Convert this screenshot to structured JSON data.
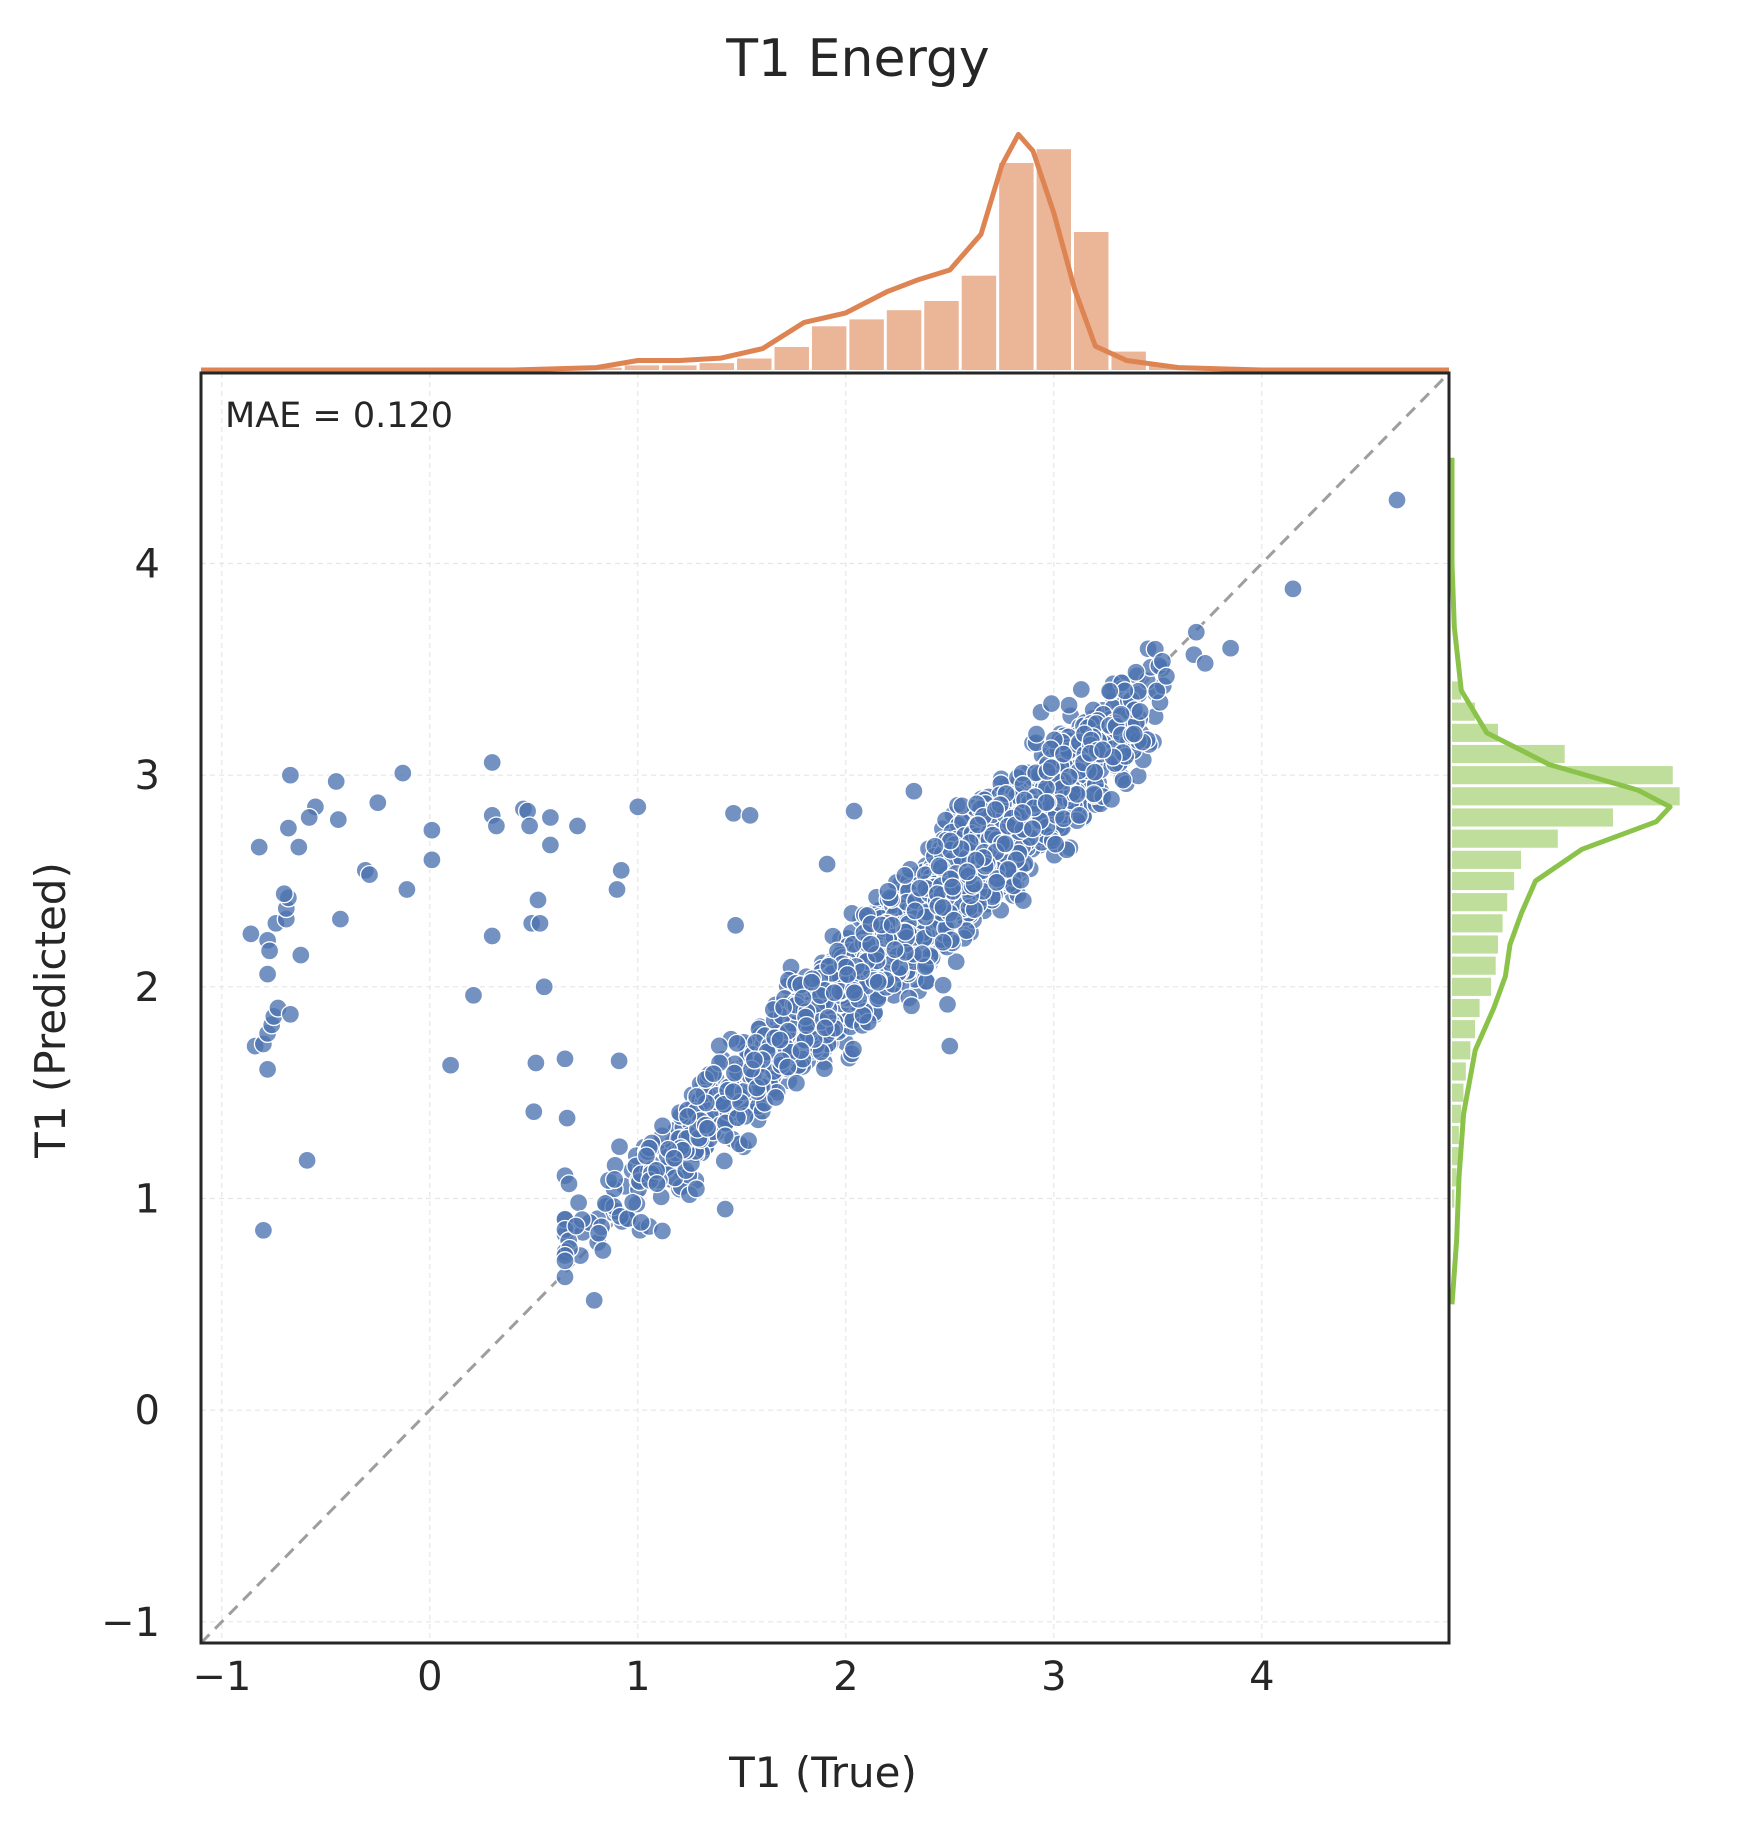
{
  "chart_data": {
    "type": "scatter",
    "title": "T1 Energy",
    "xlabel": "T1 (True)",
    "ylabel": "T1 (Predicted)",
    "xlim": [
      -1.1,
      4.9
    ],
    "ylim": [
      -1.1,
      4.9
    ],
    "xticks": [
      "−1",
      "0",
      "1",
      "2",
      "3",
      "4"
    ],
    "yticks": [
      "−1",
      "0",
      "1",
      "2",
      "3",
      "4"
    ],
    "grid": true,
    "annotation": "MAE = 0.120",
    "reference_line": "y = x",
    "colors": {
      "points": "#4c72b0",
      "top_hist": "#dd8452",
      "right_hist": "#8bc34a",
      "diagonal": "#9e9e9e"
    },
    "outliers": [
      [
        -0.82,
        2.66
      ],
      [
        -0.67,
        3.0
      ],
      [
        -0.45,
        2.97
      ],
      [
        -0.13,
        3.01
      ],
      [
        0.3,
        3.06
      ],
      [
        -0.25,
        2.87
      ],
      [
        -0.55,
        2.85
      ],
      [
        -0.58,
        2.8
      ],
      [
        -0.44,
        2.79
      ],
      [
        -0.68,
        2.75
      ],
      [
        -0.63,
        2.66
      ],
      [
        0.01,
        2.74
      ],
      [
        -0.86,
        2.25
      ],
      [
        -0.78,
        2.22
      ],
      [
        -0.77,
        2.17
      ],
      [
        -0.62,
        2.15
      ],
      [
        -0.78,
        2.06
      ],
      [
        -0.74,
        2.3
      ],
      [
        -0.69,
        2.32
      ],
      [
        -0.69,
        2.37
      ],
      [
        -0.68,
        2.42
      ],
      [
        -0.7,
        2.44
      ],
      [
        -0.43,
        2.32
      ],
      [
        -0.31,
        2.55
      ],
      [
        -0.29,
        2.53
      ],
      [
        -0.11,
        2.46
      ],
      [
        0.01,
        2.6
      ],
      [
        0.3,
        2.81
      ],
      [
        0.32,
        2.76
      ],
      [
        0.45,
        2.84
      ],
      [
        0.47,
        2.83
      ],
      [
        0.48,
        2.76
      ],
      [
        0.58,
        2.8
      ],
      [
        0.71,
        2.76
      ],
      [
        0.58,
        2.67
      ],
      [
        0.49,
        2.3
      ],
      [
        0.53,
        2.3
      ],
      [
        0.52,
        2.41
      ],
      [
        0.3,
        2.24
      ],
      [
        0.55,
        2.0
      ],
      [
        0.21,
        1.96
      ],
      [
        0.1,
        1.63
      ],
      [
        0.51,
        1.64
      ],
      [
        0.65,
        1.66
      ],
      [
        0.5,
        1.41
      ],
      [
        0.66,
        1.38
      ],
      [
        0.91,
        1.65
      ],
      [
        0.9,
        2.46
      ],
      [
        0.92,
        2.55
      ],
      [
        1.0,
        2.85
      ],
      [
        1.46,
        2.82
      ],
      [
        1.54,
        2.81
      ],
      [
        1.47,
        2.29
      ],
      [
        1.91,
        2.58
      ],
      [
        2.04,
        2.83
      ],
      [
        -0.84,
        1.72
      ],
      [
        -0.8,
        1.73
      ],
      [
        -0.78,
        1.78
      ],
      [
        -0.76,
        1.82
      ],
      [
        -0.75,
        1.86
      ],
      [
        -0.73,
        1.9
      ],
      [
        -0.67,
        1.87
      ],
      [
        -0.78,
        1.61
      ],
      [
        -0.59,
        1.18
      ],
      [
        -0.8,
        0.85
      ],
      [
        2.5,
        1.72
      ],
      [
        1.42,
        0.95
      ],
      [
        3.85,
        3.6
      ],
      [
        4.15,
        3.88
      ],
      [
        4.65,
        4.3
      ]
    ],
    "main_cluster": {
      "x_range": [
        0.65,
        3.8
      ],
      "y_equals_x_with_slope": 0.92,
      "count": 2600
    },
    "top_hist": {
      "bins": [
        0.75,
        0.93,
        1.11,
        1.29,
        1.47,
        1.65,
        1.83,
        2.01,
        2.19,
        2.37,
        2.55,
        2.73,
        2.91,
        3.09,
        3.27,
        3.45
      ],
      "density": [
        0.01,
        0.02,
        0.02,
        0.03,
        0.05,
        0.1,
        0.19,
        0.22,
        0.26,
        0.3,
        0.41,
        0.9,
        0.96,
        0.6,
        0.08,
        0.02
      ]
    },
    "right_hist": {
      "bins": [
        0.95,
        1.05,
        1.15,
        1.25,
        1.35,
        1.45,
        1.55,
        1.65,
        1.75,
        1.85,
        1.95,
        2.05,
        2.15,
        2.25,
        2.35,
        2.45,
        2.55,
        2.65,
        2.75,
        2.85,
        2.95,
        3.05,
        3.15,
        3.25,
        3.35
      ],
      "density": [
        0.01,
        0.02,
        0.03,
        0.03,
        0.04,
        0.05,
        0.06,
        0.08,
        0.1,
        0.12,
        0.17,
        0.19,
        0.2,
        0.22,
        0.24,
        0.27,
        0.3,
        0.46,
        0.7,
        0.99,
        0.96,
        0.49,
        0.2,
        0.1,
        0.04
      ]
    }
  }
}
